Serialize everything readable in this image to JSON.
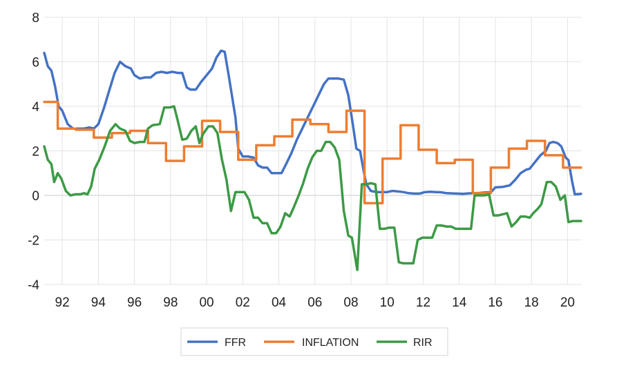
{
  "chart_data": {
    "type": "line",
    "title": "",
    "xlabel": "",
    "ylabel": "",
    "ylim": [
      -4,
      8
    ],
    "xlim": [
      1991.0,
      2020.75
    ],
    "y_ticks": [
      8,
      6,
      4,
      2,
      0,
      -2,
      -4
    ],
    "x_ticks": [
      {
        "value": 1992,
        "label": "92"
      },
      {
        "value": 1994,
        "label": "94"
      },
      {
        "value": 1996,
        "label": "96"
      },
      {
        "value": 1998,
        "label": "98"
      },
      {
        "value": 2000,
        "label": "00"
      },
      {
        "value": 2002,
        "label": "02"
      },
      {
        "value": 2004,
        "label": "04"
      },
      {
        "value": 2006,
        "label": "06"
      },
      {
        "value": 2008,
        "label": "08"
      },
      {
        "value": 2010,
        "label": "10"
      },
      {
        "value": 2012,
        "label": "12"
      },
      {
        "value": 2014,
        "label": "14"
      },
      {
        "value": 2016,
        "label": "16"
      },
      {
        "value": 2018,
        "label": "18"
      },
      {
        "value": 2020,
        "label": "20"
      }
    ],
    "grid": true,
    "legend_position": "bottom",
    "series": [
      {
        "name": "FFR",
        "color": "#4472C4",
        "points": [
          [
            1991.0,
            6.4
          ],
          [
            1991.2,
            5.8
          ],
          [
            1991.4,
            5.6
          ],
          [
            1991.6,
            4.9
          ],
          [
            1991.8,
            4.0
          ],
          [
            1992.0,
            3.8
          ],
          [
            1992.3,
            3.2
          ],
          [
            1992.6,
            3.0
          ],
          [
            1992.9,
            3.0
          ],
          [
            1993.2,
            3.0
          ],
          [
            1993.5,
            3.05
          ],
          [
            1993.75,
            3.0
          ],
          [
            1994.0,
            3.2
          ],
          [
            1994.3,
            3.9
          ],
          [
            1994.6,
            4.7
          ],
          [
            1994.9,
            5.5
          ],
          [
            1995.2,
            6.0
          ],
          [
            1995.5,
            5.8
          ],
          [
            1995.8,
            5.7
          ],
          [
            1996.0,
            5.4
          ],
          [
            1996.3,
            5.25
          ],
          [
            1996.6,
            5.3
          ],
          [
            1996.9,
            5.3
          ],
          [
            1997.2,
            5.5
          ],
          [
            1997.5,
            5.55
          ],
          [
            1997.8,
            5.5
          ],
          [
            1998.1,
            5.55
          ],
          [
            1998.4,
            5.5
          ],
          [
            1998.65,
            5.5
          ],
          [
            1998.9,
            4.85
          ],
          [
            1999.1,
            4.75
          ],
          [
            1999.4,
            4.75
          ],
          [
            1999.7,
            5.1
          ],
          [
            2000.0,
            5.4
          ],
          [
            2000.3,
            5.7
          ],
          [
            2000.55,
            6.2
          ],
          [
            2000.8,
            6.5
          ],
          [
            2001.0,
            6.45
          ],
          [
            2001.2,
            5.5
          ],
          [
            2001.4,
            4.5
          ],
          [
            2001.6,
            3.5
          ],
          [
            2001.75,
            2.1
          ],
          [
            2002.0,
            1.75
          ],
          [
            2002.3,
            1.75
          ],
          [
            2002.6,
            1.7
          ],
          [
            2002.85,
            1.35
          ],
          [
            2003.1,
            1.25
          ],
          [
            2003.35,
            1.25
          ],
          [
            2003.6,
            1.0
          ],
          [
            2003.85,
            1.0
          ],
          [
            2004.15,
            1.0
          ],
          [
            2004.4,
            1.4
          ],
          [
            2004.7,
            1.9
          ],
          [
            2005.0,
            2.5
          ],
          [
            2005.3,
            3.0
          ],
          [
            2005.6,
            3.5
          ],
          [
            2005.9,
            4.0
          ],
          [
            2006.2,
            4.5
          ],
          [
            2006.5,
            5.0
          ],
          [
            2006.75,
            5.25
          ],
          [
            2007.0,
            5.25
          ],
          [
            2007.3,
            5.25
          ],
          [
            2007.6,
            5.2
          ],
          [
            2007.85,
            4.5
          ],
          [
            2008.1,
            3.2
          ],
          [
            2008.3,
            2.1
          ],
          [
            2008.5,
            2.0
          ],
          [
            2008.7,
            1.1
          ],
          [
            2008.85,
            0.5
          ],
          [
            2009.1,
            0.2
          ],
          [
            2009.4,
            0.15
          ],
          [
            2009.7,
            0.15
          ],
          [
            2010.0,
            0.15
          ],
          [
            2010.3,
            0.2
          ],
          [
            2010.6,
            0.18
          ],
          [
            2010.9,
            0.15
          ],
          [
            2011.2,
            0.1
          ],
          [
            2011.5,
            0.08
          ],
          [
            2011.8,
            0.08
          ],
          [
            2012.1,
            0.15
          ],
          [
            2012.4,
            0.16
          ],
          [
            2012.7,
            0.15
          ],
          [
            2013.0,
            0.14
          ],
          [
            2013.3,
            0.1
          ],
          [
            2013.6,
            0.09
          ],
          [
            2013.9,
            0.08
          ],
          [
            2014.2,
            0.07
          ],
          [
            2014.5,
            0.09
          ],
          [
            2014.8,
            0.1
          ],
          [
            2015.1,
            0.11
          ],
          [
            2015.4,
            0.13
          ],
          [
            2015.75,
            0.14
          ],
          [
            2016.0,
            0.36
          ],
          [
            2016.4,
            0.38
          ],
          [
            2016.8,
            0.45
          ],
          [
            2017.1,
            0.7
          ],
          [
            2017.4,
            1.0
          ],
          [
            2017.7,
            1.15
          ],
          [
            2017.9,
            1.2
          ],
          [
            2018.2,
            1.5
          ],
          [
            2018.5,
            1.8
          ],
          [
            2018.8,
            2.0
          ],
          [
            2019.0,
            2.35
          ],
          [
            2019.2,
            2.4
          ],
          [
            2019.45,
            2.35
          ],
          [
            2019.65,
            2.2
          ],
          [
            2019.9,
            1.7
          ],
          [
            2020.05,
            1.58
          ],
          [
            2020.25,
            0.65
          ],
          [
            2020.4,
            0.05
          ],
          [
            2020.75,
            0.07
          ]
        ]
      },
      {
        "name": "INFLATION",
        "color": "#ED7D31",
        "points": [
          [
            1991.0,
            4.2
          ],
          [
            1991.75,
            4.2
          ],
          [
            1991.75,
            3.0
          ],
          [
            1992.75,
            3.0
          ],
          [
            1992.75,
            2.95
          ],
          [
            1993.75,
            2.95
          ],
          [
            1993.75,
            2.6
          ],
          [
            1994.75,
            2.6
          ],
          [
            1994.75,
            2.8
          ],
          [
            1995.75,
            2.8
          ],
          [
            1995.75,
            2.9
          ],
          [
            1996.75,
            2.9
          ],
          [
            1996.75,
            2.35
          ],
          [
            1997.75,
            2.35
          ],
          [
            1997.75,
            1.55
          ],
          [
            1998.75,
            1.55
          ],
          [
            1998.75,
            2.2
          ],
          [
            1999.75,
            2.2
          ],
          [
            1999.75,
            3.35
          ],
          [
            2000.75,
            3.35
          ],
          [
            2000.75,
            2.85
          ],
          [
            2001.75,
            2.85
          ],
          [
            2001.75,
            1.6
          ],
          [
            2002.75,
            1.6
          ],
          [
            2002.75,
            2.25
          ],
          [
            2003.75,
            2.25
          ],
          [
            2003.75,
            2.65
          ],
          [
            2004.75,
            2.65
          ],
          [
            2004.75,
            3.4
          ],
          [
            2005.75,
            3.4
          ],
          [
            2005.75,
            3.2
          ],
          [
            2006.75,
            3.2
          ],
          [
            2006.75,
            2.85
          ],
          [
            2007.75,
            2.85
          ],
          [
            2007.75,
            3.8
          ],
          [
            2008.75,
            3.8
          ],
          [
            2008.75,
            -0.35
          ],
          [
            2009.75,
            -0.35
          ],
          [
            2009.75,
            1.65
          ],
          [
            2010.75,
            1.65
          ],
          [
            2010.75,
            3.15
          ],
          [
            2011.75,
            3.15
          ],
          [
            2011.75,
            2.05
          ],
          [
            2012.75,
            2.05
          ],
          [
            2012.75,
            1.45
          ],
          [
            2013.75,
            1.45
          ],
          [
            2013.75,
            1.6
          ],
          [
            2014.75,
            1.6
          ],
          [
            2014.75,
            0.1
          ],
          [
            2015.75,
            0.1
          ],
          [
            2015.75,
            1.25
          ],
          [
            2016.75,
            1.25
          ],
          [
            2016.75,
            2.1
          ],
          [
            2017.75,
            2.1
          ],
          [
            2017.75,
            2.45
          ],
          [
            2018.75,
            2.45
          ],
          [
            2018.75,
            1.8
          ],
          [
            2019.75,
            1.8
          ],
          [
            2019.75,
            1.25
          ],
          [
            2020.75,
            1.25
          ]
        ]
      },
      {
        "name": "RIR",
        "color": "#3C9A45",
        "points": [
          [
            1991.0,
            2.2
          ],
          [
            1991.2,
            1.6
          ],
          [
            1991.4,
            1.4
          ],
          [
            1991.55,
            0.6
          ],
          [
            1991.75,
            1.0
          ],
          [
            1991.95,
            0.75
          ],
          [
            1992.2,
            0.2
          ],
          [
            1992.45,
            0.0
          ],
          [
            1992.75,
            0.05
          ],
          [
            1993.0,
            0.05
          ],
          [
            1993.2,
            0.1
          ],
          [
            1993.4,
            0.05
          ],
          [
            1993.6,
            0.4
          ],
          [
            1993.8,
            1.2
          ],
          [
            1994.05,
            1.6
          ],
          [
            1994.35,
            2.2
          ],
          [
            1994.65,
            2.9
          ],
          [
            1994.95,
            3.2
          ],
          [
            1995.2,
            3.0
          ],
          [
            1995.5,
            2.9
          ],
          [
            1995.75,
            2.45
          ],
          [
            1996.0,
            2.35
          ],
          [
            1996.3,
            2.4
          ],
          [
            1996.55,
            2.4
          ],
          [
            1996.75,
            3.0
          ],
          [
            1997.0,
            3.15
          ],
          [
            1997.4,
            3.2
          ],
          [
            1997.65,
            3.95
          ],
          [
            1997.95,
            3.95
          ],
          [
            1998.2,
            4.0
          ],
          [
            1998.4,
            3.35
          ],
          [
            1998.65,
            2.5
          ],
          [
            1998.9,
            2.55
          ],
          [
            1999.15,
            2.9
          ],
          [
            1999.4,
            3.1
          ],
          [
            1999.6,
            2.35
          ],
          [
            1999.8,
            2.75
          ],
          [
            2000.1,
            3.1
          ],
          [
            2000.35,
            3.1
          ],
          [
            2000.6,
            2.8
          ],
          [
            2000.85,
            1.6
          ],
          [
            2001.1,
            0.7
          ],
          [
            2001.35,
            -0.7
          ],
          [
            2001.6,
            0.15
          ],
          [
            2001.85,
            0.15
          ],
          [
            2002.1,
            0.15
          ],
          [
            2002.35,
            -0.2
          ],
          [
            2002.6,
            -1.0
          ],
          [
            2002.85,
            -1.0
          ],
          [
            2003.1,
            -1.25
          ],
          [
            2003.35,
            -1.25
          ],
          [
            2003.6,
            -1.7
          ],
          [
            2003.85,
            -1.7
          ],
          [
            2004.1,
            -1.4
          ],
          [
            2004.35,
            -0.8
          ],
          [
            2004.6,
            -0.95
          ],
          [
            2004.85,
            -0.5
          ],
          [
            2005.1,
            0.0
          ],
          [
            2005.35,
            0.55
          ],
          [
            2005.6,
            1.2
          ],
          [
            2005.85,
            1.7
          ],
          [
            2006.1,
            2.0
          ],
          [
            2006.35,
            2.0
          ],
          [
            2006.6,
            2.4
          ],
          [
            2006.85,
            2.4
          ],
          [
            2007.1,
            2.15
          ],
          [
            2007.35,
            1.6
          ],
          [
            2007.6,
            -0.7
          ],
          [
            2007.85,
            -1.8
          ],
          [
            2008.05,
            -1.9
          ],
          [
            2008.35,
            -3.35
          ],
          [
            2008.6,
            0.5
          ],
          [
            2008.85,
            0.5
          ],
          [
            2009.1,
            0.55
          ],
          [
            2009.35,
            0.5
          ],
          [
            2009.6,
            -1.5
          ],
          [
            2009.85,
            -1.5
          ],
          [
            2010.1,
            -1.45
          ],
          [
            2010.4,
            -1.45
          ],
          [
            2010.65,
            -3.0
          ],
          [
            2010.9,
            -3.05
          ],
          [
            2011.15,
            -3.05
          ],
          [
            2011.45,
            -3.05
          ],
          [
            2011.7,
            -2.0
          ],
          [
            2011.95,
            -1.9
          ],
          [
            2012.25,
            -1.9
          ],
          [
            2012.5,
            -1.9
          ],
          [
            2012.75,
            -1.35
          ],
          [
            2013.0,
            -1.35
          ],
          [
            2013.3,
            -1.4
          ],
          [
            2013.55,
            -1.4
          ],
          [
            2013.8,
            -1.5
          ],
          [
            2014.1,
            -1.5
          ],
          [
            2014.4,
            -1.5
          ],
          [
            2014.65,
            -1.5
          ],
          [
            2014.85,
            0.0
          ],
          [
            2015.15,
            0.0
          ],
          [
            2015.4,
            0.0
          ],
          [
            2015.65,
            0.05
          ],
          [
            2015.9,
            -0.9
          ],
          [
            2016.15,
            -0.9
          ],
          [
            2016.4,
            -0.85
          ],
          [
            2016.65,
            -0.8
          ],
          [
            2016.9,
            -1.4
          ],
          [
            2017.15,
            -1.2
          ],
          [
            2017.4,
            -0.95
          ],
          [
            2017.65,
            -0.95
          ],
          [
            2017.9,
            -1.0
          ],
          [
            2018.1,
            -0.8
          ],
          [
            2018.35,
            -0.6
          ],
          [
            2018.55,
            -0.4
          ],
          [
            2018.85,
            0.6
          ],
          [
            2019.1,
            0.6
          ],
          [
            2019.35,
            0.4
          ],
          [
            2019.6,
            -0.2
          ],
          [
            2019.85,
            0.0
          ],
          [
            2020.05,
            -1.2
          ],
          [
            2020.3,
            -1.15
          ],
          [
            2020.75,
            -1.15
          ]
        ]
      }
    ]
  }
}
